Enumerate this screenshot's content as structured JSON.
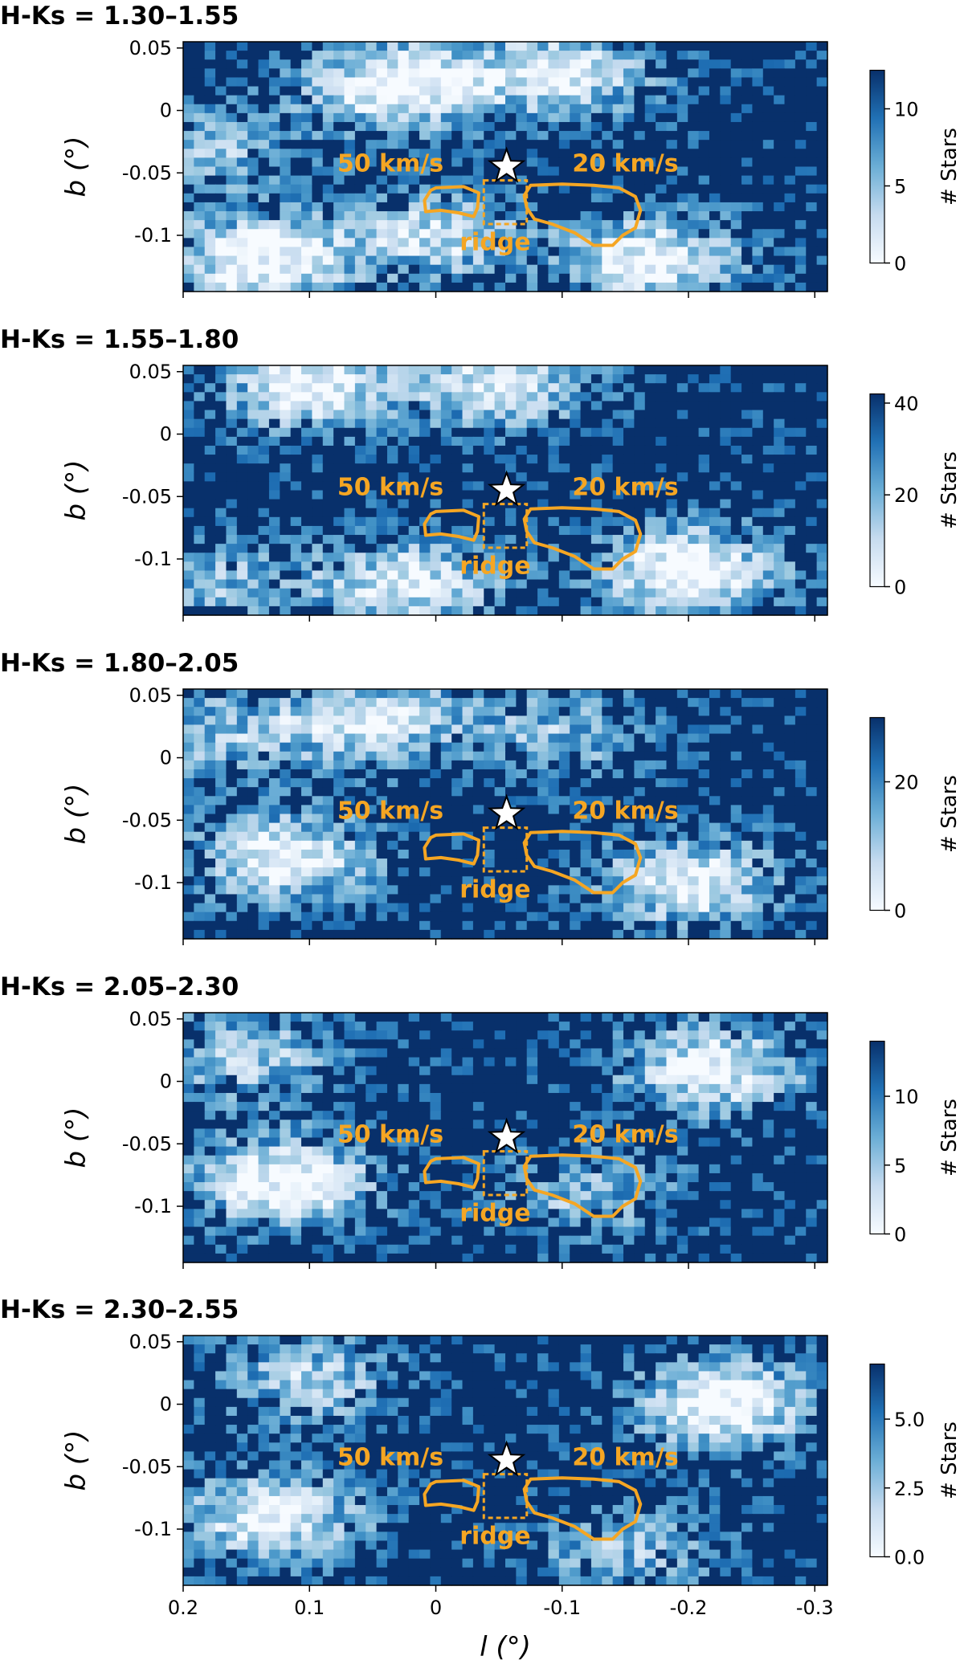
{
  "chart_data": [
    {
      "type": "heatmap",
      "title": "H-Ks = 1.30–1.55",
      "xlabel": "",
      "ylabel": "b (°)",
      "xlim": [
        0.2,
        -0.31
      ],
      "ylim": [
        -0.145,
        0.055
      ],
      "yticks": [
        {
          "v": 0.05,
          "label": "0.05"
        },
        {
          "v": 0,
          "label": "0"
        },
        {
          "v": -0.05,
          "label": "-0.05"
        },
        {
          "v": -0.1,
          "label": "-0.1"
        }
      ],
      "xticks": [
        {
          "v": 0.2,
          "label": ""
        },
        {
          "v": 0.1,
          "label": ""
        },
        {
          "v": 0,
          "label": ""
        },
        {
          "v": -0.1,
          "label": ""
        },
        {
          "v": -0.2,
          "label": ""
        },
        {
          "v": -0.3,
          "label": ""
        }
      ],
      "colorbar": {
        "label": "# Stars",
        "min": 0,
        "max": 12.5,
        "ticks": [
          {
            "v": 0,
            "label": "0"
          },
          {
            "v": 5,
            "label": "5"
          },
          {
            "v": 10,
            "label": "10"
          }
        ]
      },
      "seed": 11,
      "blobs": [
        {
          "l": 0.03,
          "b": 0.02,
          "w": 1.0
        },
        {
          "l": -0.1,
          "b": 0.03,
          "w": 0.8
        },
        {
          "l": 0.14,
          "b": -0.12,
          "w": 1.0
        },
        {
          "l": 0.0,
          "b": -0.1,
          "w": 0.7
        },
        {
          "l": -0.17,
          "b": -0.12,
          "w": 0.9
        },
        {
          "l": 0.18,
          "b": -0.03,
          "w": 0.5
        }
      ]
    },
    {
      "type": "heatmap",
      "title": "H-Ks = 1.55–1.80",
      "xlabel": "",
      "ylabel": "b (°)",
      "xlim": [
        0.2,
        -0.31
      ],
      "ylim": [
        -0.145,
        0.055
      ],
      "yticks": [
        {
          "v": 0.05,
          "label": "0.05"
        },
        {
          "v": 0,
          "label": "0"
        },
        {
          "v": -0.05,
          "label": "-0.05"
        },
        {
          "v": -0.1,
          "label": "-0.1"
        }
      ],
      "xticks": [
        {
          "v": 0.2,
          "label": ""
        },
        {
          "v": 0.1,
          "label": ""
        },
        {
          "v": 0,
          "label": ""
        },
        {
          "v": -0.1,
          "label": ""
        },
        {
          "v": -0.2,
          "label": ""
        },
        {
          "v": -0.3,
          "label": ""
        }
      ],
      "colorbar": {
        "label": "# Stars",
        "min": 0,
        "max": 42,
        "ticks": [
          {
            "v": 0,
            "label": "0"
          },
          {
            "v": 20,
            "label": "20"
          },
          {
            "v": 40,
            "label": "40"
          }
        ]
      },
      "seed": 23,
      "blobs": [
        {
          "l": 0.1,
          "b": 0.04,
          "w": 0.9
        },
        {
          "l": -0.05,
          "b": 0.04,
          "w": 0.8
        },
        {
          "l": -0.2,
          "b": -0.11,
          "w": 1.0
        },
        {
          "l": 0.02,
          "b": -0.12,
          "w": 0.8
        },
        {
          "l": 0.17,
          "b": -0.12,
          "w": 0.5
        }
      ]
    },
    {
      "type": "heatmap",
      "title": "H-Ks = 1.80–2.05",
      "xlabel": "",
      "ylabel": "b (°)",
      "xlim": [
        0.2,
        -0.31
      ],
      "ylim": [
        -0.145,
        0.055
      ],
      "yticks": [
        {
          "v": 0.05,
          "label": "0.05"
        },
        {
          "v": 0,
          "label": "0"
        },
        {
          "v": -0.05,
          "label": "-0.05"
        },
        {
          "v": -0.1,
          "label": "-0.1"
        }
      ],
      "xticks": [
        {
          "v": 0.2,
          "label": ""
        },
        {
          "v": 0.1,
          "label": ""
        },
        {
          "v": 0,
          "label": ""
        },
        {
          "v": -0.1,
          "label": ""
        },
        {
          "v": -0.2,
          "label": ""
        },
        {
          "v": -0.3,
          "label": ""
        }
      ],
      "colorbar": {
        "label": "# Stars",
        "min": 0,
        "max": 30,
        "ticks": [
          {
            "v": 0,
            "label": "0"
          },
          {
            "v": 20,
            "label": "20"
          }
        ]
      },
      "seed": 37,
      "blobs": [
        {
          "l": 0.12,
          "b": -0.08,
          "w": 0.9
        },
        {
          "l": 0.05,
          "b": 0.03,
          "w": 0.8
        },
        {
          "l": -0.2,
          "b": -0.1,
          "w": 0.9
        },
        {
          "l": -0.1,
          "b": 0.02,
          "w": 0.5
        },
        {
          "l": 0.17,
          "b": 0.02,
          "w": 0.5
        }
      ]
    },
    {
      "type": "heatmap",
      "title": "H-Ks = 2.05–2.30",
      "xlabel": "",
      "ylabel": "b (°)",
      "xlim": [
        0.2,
        -0.31
      ],
      "ylim": [
        -0.145,
        0.055
      ],
      "yticks": [
        {
          "v": 0.05,
          "label": "0.05"
        },
        {
          "v": 0,
          "label": "0"
        },
        {
          "v": -0.05,
          "label": "-0.05"
        },
        {
          "v": -0.1,
          "label": "-0.1"
        }
      ],
      "xticks": [
        {
          "v": 0.2,
          "label": ""
        },
        {
          "v": 0.1,
          "label": ""
        },
        {
          "v": 0,
          "label": ""
        },
        {
          "v": -0.1,
          "label": ""
        },
        {
          "v": -0.2,
          "label": ""
        },
        {
          "v": -0.3,
          "label": ""
        }
      ],
      "colorbar": {
        "label": "# Stars",
        "min": 0,
        "max": 14,
        "ticks": [
          {
            "v": 0,
            "label": "0"
          },
          {
            "v": 5,
            "label": "5"
          },
          {
            "v": 10,
            "label": "10"
          }
        ]
      },
      "seed": 53,
      "blobs": [
        {
          "l": 0.12,
          "b": -0.08,
          "w": 1.0
        },
        {
          "l": -0.22,
          "b": 0.01,
          "w": 0.9
        },
        {
          "l": 0.15,
          "b": 0.02,
          "w": 0.6
        },
        {
          "l": -0.12,
          "b": -0.09,
          "w": 0.5
        }
      ]
    },
    {
      "type": "heatmap",
      "title": "H-Ks = 2.30–2.55",
      "xlabel": "l (°)",
      "ylabel": "b (°)",
      "xlim": [
        0.2,
        -0.31
      ],
      "ylim": [
        -0.145,
        0.055
      ],
      "yticks": [
        {
          "v": 0.05,
          "label": "0.05"
        },
        {
          "v": 0,
          "label": "0"
        },
        {
          "v": -0.05,
          "label": "-0.05"
        },
        {
          "v": -0.1,
          "label": "-0.1"
        }
      ],
      "xticks": [
        {
          "v": 0.2,
          "label": "0.2"
        },
        {
          "v": 0.1,
          "label": "0.1"
        },
        {
          "v": 0,
          "label": "0"
        },
        {
          "v": -0.1,
          "label": "-0.1"
        },
        {
          "v": -0.2,
          "label": "-0.2"
        },
        {
          "v": -0.3,
          "label": "-0.3"
        }
      ],
      "colorbar": {
        "label": "# Stars",
        "min": 0,
        "max": 7,
        "ticks": [
          {
            "v": 0,
            "label": "0.0"
          },
          {
            "v": 2.5,
            "label": "2.5"
          },
          {
            "v": 5,
            "label": "5.0"
          }
        ]
      },
      "seed": 71,
      "blobs": [
        {
          "l": 0.13,
          "b": -0.09,
          "w": 0.9
        },
        {
          "l": -0.23,
          "b": 0.0,
          "w": 1.0
        },
        {
          "l": 0.1,
          "b": 0.02,
          "w": 0.6
        },
        {
          "l": -0.15,
          "b": -0.12,
          "w": 0.5
        }
      ]
    }
  ],
  "overlay": {
    "star": {
      "l": -0.056,
      "b": -0.045
    },
    "labels": {
      "cloud_50": "50 km/s",
      "cloud_20": "20 km/s",
      "ridge": "ridge"
    },
    "colors": {
      "contour": "#f5a623",
      "cmap_low": "#f7fbff",
      "cmap_high": "#08306b"
    },
    "cloud_50_contour": [
      [
        0.0,
        -0.062
      ],
      [
        -0.022,
        -0.061
      ],
      [
        -0.034,
        -0.066
      ],
      [
        -0.033,
        -0.078
      ],
      [
        -0.03,
        -0.085
      ],
      [
        -0.018,
        -0.082
      ],
      [
        -0.004,
        -0.08
      ],
      [
        0.008,
        -0.081
      ],
      [
        0.009,
        -0.072
      ],
      [
        0.004,
        -0.064
      ]
    ],
    "cloud_20_contour": [
      [
        -0.075,
        -0.06
      ],
      [
        -0.1,
        -0.059
      ],
      [
        -0.125,
        -0.06
      ],
      [
        -0.145,
        -0.062
      ],
      [
        -0.158,
        -0.069
      ],
      [
        -0.162,
        -0.08
      ],
      [
        -0.158,
        -0.094
      ],
      [
        -0.148,
        -0.1
      ],
      [
        -0.14,
        -0.108
      ],
      [
        -0.125,
        -0.108
      ],
      [
        -0.11,
        -0.098
      ],
      [
        -0.092,
        -0.091
      ],
      [
        -0.078,
        -0.087
      ],
      [
        -0.072,
        -0.078
      ],
      [
        -0.07,
        -0.068
      ]
    ],
    "ridge_box": [
      [
        -0.038,
        -0.056
      ],
      [
        -0.072,
        -0.091
      ]
    ]
  }
}
